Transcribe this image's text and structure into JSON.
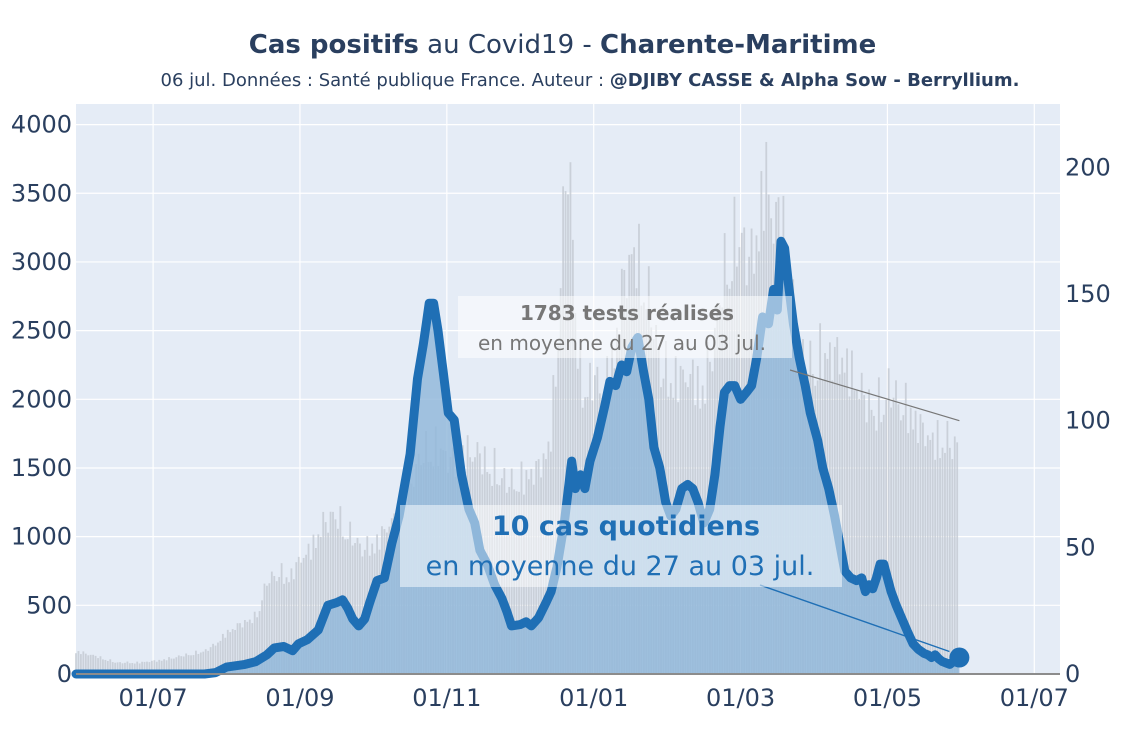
{
  "header": {
    "title_bold_1": "Cas positifs",
    "title_mid": " au Covid19 - ",
    "title_bold_2": "Charente-Maritime",
    "subtitle_text": "06 jul. Données : Santé publique France. Auteur : ",
    "subtitle_bold": "@DJIBY CASSE & Alpha Sow - Berryllium."
  },
  "colors": {
    "plot_bg": "#e5ecf6",
    "cases_line": "#1f6fb5",
    "cases_fill": "#8fb6da",
    "tests_bars": "#c5cbd3",
    "annotation_line": "#777777"
  },
  "chart_data": {
    "type": "line",
    "title": "",
    "x_ticks": [
      "01/07",
      "01/09",
      "01/11",
      "01/01",
      "01/03",
      "01/05",
      "01/07"
    ],
    "x_tick_months": [
      0,
      2,
      4,
      6,
      8,
      10,
      12
    ],
    "x_range_months": [
      -1.05,
      12.35
    ],
    "y_left": {
      "ticks": [
        0,
        500,
        1000,
        1500,
        2000,
        2500,
        3000,
        3500,
        4000
      ],
      "range": [
        0,
        4150
      ]
    },
    "y_right": {
      "ticks": [
        0,
        50,
        100,
        150,
        200
      ],
      "range": [
        0,
        225
      ]
    },
    "grid": true,
    "series": [
      {
        "axis": "left",
        "style": "line+fill",
        "points": [
          [
            -1.05,
            0
          ],
          [
            -0.5,
            0
          ],
          [
            0,
            0
          ],
          [
            0.5,
            0
          ],
          [
            0.7,
            0
          ],
          [
            0.85,
            10
          ],
          [
            1.0,
            50
          ],
          [
            1.25,
            70
          ],
          [
            1.4,
            90
          ],
          [
            1.55,
            140
          ],
          [
            1.65,
            190
          ],
          [
            1.78,
            200
          ],
          [
            1.9,
            170
          ],
          [
            1.98,
            220
          ],
          [
            2.1,
            250
          ],
          [
            2.25,
            320
          ],
          [
            2.38,
            500
          ],
          [
            2.5,
            520
          ],
          [
            2.58,
            540
          ],
          [
            2.65,
            480
          ],
          [
            2.72,
            400
          ],
          [
            2.8,
            350
          ],
          [
            2.88,
            400
          ],
          [
            2.95,
            520
          ],
          [
            3.05,
            680
          ],
          [
            3.15,
            700
          ],
          [
            3.25,
            950
          ],
          [
            3.35,
            1150
          ],
          [
            3.5,
            1600
          ],
          [
            3.6,
            2150
          ],
          [
            3.68,
            2400
          ],
          [
            3.72,
            2550
          ],
          [
            3.76,
            2700
          ],
          [
            3.82,
            2700
          ],
          [
            3.88,
            2500
          ],
          [
            3.95,
            2200
          ],
          [
            4.02,
            1900
          ],
          [
            4.1,
            1850
          ],
          [
            4.2,
            1450
          ],
          [
            4.3,
            1200
          ],
          [
            4.38,
            1100
          ],
          [
            4.45,
            900
          ],
          [
            4.55,
            800
          ],
          [
            4.65,
            650
          ],
          [
            4.75,
            550
          ],
          [
            4.82,
            450
          ],
          [
            4.88,
            350
          ],
          [
            5.0,
            360
          ],
          [
            5.08,
            380
          ],
          [
            5.15,
            350
          ],
          [
            5.25,
            410
          ],
          [
            5.35,
            520
          ],
          [
            5.42,
            600
          ],
          [
            5.5,
            780
          ],
          [
            5.6,
            1100
          ],
          [
            5.7,
            1550
          ],
          [
            5.75,
            1350
          ],
          [
            5.82,
            1450
          ],
          [
            5.88,
            1350
          ],
          [
            5.95,
            1550
          ],
          [
            6.05,
            1720
          ],
          [
            6.15,
            1950
          ],
          [
            6.22,
            2130
          ],
          [
            6.3,
            2100
          ],
          [
            6.38,
            2250
          ],
          [
            6.45,
            2200
          ],
          [
            6.52,
            2380
          ],
          [
            6.6,
            2450
          ],
          [
            6.68,
            2200
          ],
          [
            6.75,
            2000
          ],
          [
            6.82,
            1650
          ],
          [
            6.9,
            1500
          ],
          [
            6.98,
            1250
          ],
          [
            7.05,
            1150
          ],
          [
            7.12,
            1200
          ],
          [
            7.2,
            1350
          ],
          [
            7.28,
            1380
          ],
          [
            7.35,
            1350
          ],
          [
            7.42,
            1250
          ],
          [
            7.5,
            1100
          ],
          [
            7.58,
            1200
          ],
          [
            7.65,
            1450
          ],
          [
            7.72,
            1800
          ],
          [
            7.78,
            2050
          ],
          [
            7.85,
            2100
          ],
          [
            7.92,
            2100
          ],
          [
            8.0,
            2000
          ],
          [
            8.08,
            2050
          ],
          [
            8.15,
            2100
          ],
          [
            8.22,
            2300
          ],
          [
            8.3,
            2600
          ],
          [
            8.38,
            2550
          ],
          [
            8.45,
            2800
          ],
          [
            8.5,
            2650
          ],
          [
            8.55,
            3150
          ],
          [
            8.6,
            3100
          ],
          [
            8.65,
            2850
          ],
          [
            8.72,
            2550
          ],
          [
            8.8,
            2300
          ],
          [
            8.88,
            2100
          ],
          [
            8.95,
            1900
          ],
          [
            9.05,
            1700
          ],
          [
            9.12,
            1500
          ],
          [
            9.2,
            1350
          ],
          [
            9.28,
            1150
          ],
          [
            9.35,
            950
          ],
          [
            9.42,
            750
          ],
          [
            9.5,
            700
          ],
          [
            9.58,
            680
          ],
          [
            9.65,
            700
          ],
          [
            9.7,
            600
          ],
          [
            9.75,
            650
          ],
          [
            9.8,
            620
          ],
          [
            9.85,
            700
          ],
          [
            9.9,
            800
          ],
          [
            9.95,
            800
          ],
          [
            10.0,
            700
          ],
          [
            10.05,
            600
          ],
          [
            10.12,
            500
          ],
          [
            10.2,
            400
          ],
          [
            10.28,
            300
          ],
          [
            10.35,
            220
          ],
          [
            10.42,
            180
          ],
          [
            10.5,
            150
          ],
          [
            10.55,
            140
          ],
          [
            10.6,
            120
          ],
          [
            10.65,
            140
          ],
          [
            10.7,
            110
          ],
          [
            10.75,
            90
          ],
          [
            10.8,
            80
          ],
          [
            10.85,
            70
          ],
          [
            10.92,
            100
          ],
          [
            10.98,
            120
          ]
        ]
      },
      {
        "axis": "right",
        "style": "bars",
        "points": [
          [
            -1.05,
            10
          ],
          [
            -0.8,
            8
          ],
          [
            -0.5,
            5
          ],
          [
            -0.2,
            5
          ],
          [
            0.1,
            6
          ],
          [
            0.4,
            8
          ],
          [
            0.7,
            10
          ],
          [
            0.85,
            13
          ],
          [
            1.0,
            18
          ],
          [
            1.2,
            22
          ],
          [
            1.4,
            25
          ],
          [
            1.55,
            40
          ],
          [
            1.7,
            45
          ],
          [
            1.85,
            42
          ],
          [
            2.0,
            50
          ],
          [
            2.15,
            55
          ],
          [
            2.3,
            65
          ],
          [
            2.45,
            70
          ],
          [
            2.6,
            65
          ],
          [
            2.75,
            58
          ],
          [
            2.9,
            55
          ],
          [
            3.05,
            58
          ],
          [
            3.2,
            65
          ],
          [
            3.35,
            70
          ],
          [
            3.5,
            85
          ],
          [
            3.65,
            95
          ],
          [
            3.8,
            100
          ],
          [
            3.95,
            97
          ],
          [
            4.1,
            92
          ],
          [
            4.25,
            97
          ],
          [
            4.4,
            97
          ],
          [
            4.55,
            92
          ],
          [
            4.7,
            88
          ],
          [
            4.85,
            83
          ],
          [
            5.0,
            85
          ],
          [
            5.15,
            88
          ],
          [
            5.25,
            90
          ],
          [
            5.4,
            100
          ],
          [
            5.5,
            140
          ],
          [
            5.6,
            210
          ],
          [
            5.66,
            225
          ],
          [
            5.72,
            190
          ],
          [
            5.8,
            130
          ],
          [
            5.9,
            125
          ],
          [
            6.0,
            130
          ],
          [
            6.1,
            125
          ],
          [
            6.2,
            130
          ],
          [
            6.3,
            145
          ],
          [
            6.42,
            175
          ],
          [
            6.55,
            185
          ],
          [
            6.68,
            175
          ],
          [
            6.8,
            155
          ],
          [
            6.92,
            135
          ],
          [
            7.05,
            130
          ],
          [
            7.2,
            130
          ],
          [
            7.35,
            130
          ],
          [
            7.5,
            125
          ],
          [
            7.65,
            150
          ],
          [
            7.8,
            180
          ],
          [
            7.92,
            190
          ],
          [
            8.05,
            190
          ],
          [
            8.15,
            180
          ],
          [
            8.25,
            200
          ],
          [
            8.35,
            220
          ],
          [
            8.45,
            195
          ],
          [
            8.55,
            205
          ],
          [
            8.62,
            190
          ],
          [
            8.7,
            160
          ],
          [
            8.8,
            140
          ],
          [
            8.95,
            135
          ],
          [
            9.1,
            140
          ],
          [
            9.25,
            140
          ],
          [
            9.4,
            138
          ],
          [
            9.55,
            130
          ],
          [
            9.7,
            120
          ],
          [
            9.85,
            115
          ],
          [
            10.0,
            125
          ],
          [
            10.15,
            120
          ],
          [
            10.3,
            115
          ],
          [
            10.45,
            108
          ],
          [
            10.6,
            102
          ],
          [
            10.75,
            103
          ],
          [
            10.9,
            100
          ],
          [
            10.98,
            100
          ]
        ]
      }
    ],
    "end_point": {
      "x": 10.98,
      "y": 120
    },
    "annotations": {
      "tests_bold": "1783 tests réalisés",
      "tests_text": "en moyenne du 27 au 03 jul.",
      "cases_bold": "10 cas quotidiens",
      "cases_text": "en moyenne du 27 au 03 jul."
    }
  }
}
